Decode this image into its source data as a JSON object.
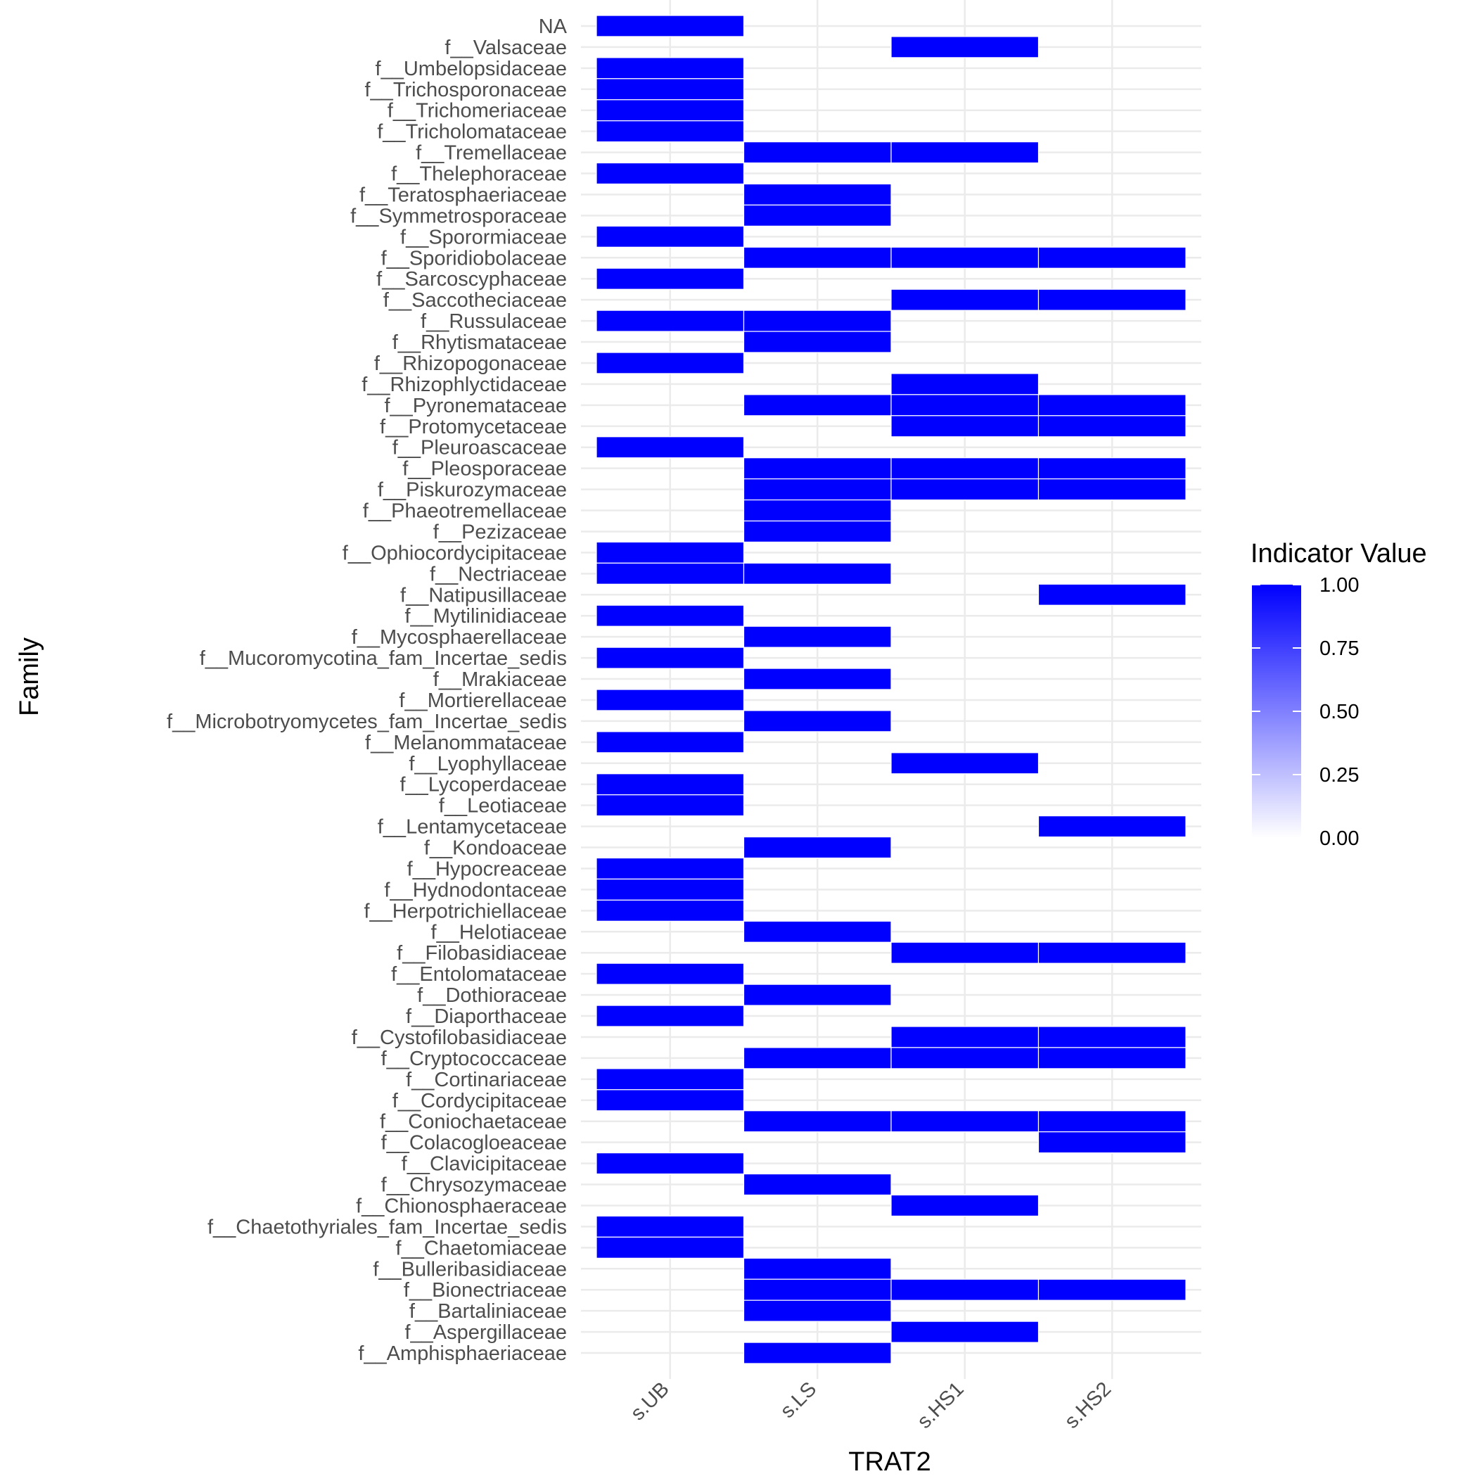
{
  "chart_data": {
    "type": "heatmap",
    "xlabel": "TRAT2",
    "ylabel": "Family",
    "x_categories": [
      "s.UB",
      "s.LS",
      "s.HS1",
      "s.HS2"
    ],
    "y_categories": [
      "NA",
      "f__Valsaceae",
      "f__Umbelopsidaceae",
      "f__Trichosporonaceae",
      "f__Trichomeriaceae",
      "f__Tricholomataceae",
      "f__Tremellaceae",
      "f__Thelephoraceae",
      "f__Teratosphaeriaceae",
      "f__Symmetrosporaceae",
      "f__Sporormiaceae",
      "f__Sporidiobolaceae",
      "f__Sarcoscyphaceae",
      "f__Saccotheciaceae",
      "f__Russulaceae",
      "f__Rhytismataceae",
      "f__Rhizopogonaceae",
      "f__Rhizophlyctidaceae",
      "f__Pyronemataceae",
      "f__Protomycetaceae",
      "f__Pleuroascaceae",
      "f__Pleosporaceae",
      "f__Piskurozymaceae",
      "f__Phaeotremellaceae",
      "f__Pezizaceae",
      "f__Ophiocordycipitaceae",
      "f__Nectriaceae",
      "f__Natipusillaceae",
      "f__Mytilinidiaceae",
      "f__Mycosphaerellaceae",
      "f__Mucoromycotina_fam_Incertae_sedis",
      "f__Mrakiaceae",
      "f__Mortierellaceae",
      "f__Microbotryomycetes_fam_Incertae_sedis",
      "f__Melanommataceae",
      "f__Lyophyllaceae",
      "f__Lycoperdaceae",
      "f__Leotiaceae",
      "f__Lentamycetaceae",
      "f__Kondoaceae",
      "f__Hypocreaceae",
      "f__Hydnodontaceae",
      "f__Herpotrichiellaceae",
      "f__Helotiaceae",
      "f__Filobasidiaceae",
      "f__Entolomataceae",
      "f__Dothioraceae",
      "f__Diaporthaceae",
      "f__Cystofilobasidiaceae",
      "f__Cryptococcaceae",
      "f__Cortinariaceae",
      "f__Cordycipitaceae",
      "f__Coniochaetaceae",
      "f__Colacogloeaceae",
      "f__Clavicipitaceae",
      "f__Chrysozymaceae",
      "f__Chionosphaeraceae",
      "f__Chaetothyriales_fam_Incertae_sedis",
      "f__Chaetomiaceae",
      "f__Bulleribasidiaceae",
      "f__Bionectriaceae",
      "f__Bartaliniaceae",
      "f__Aspergillaceae",
      "f__Amphisphaeriaceae"
    ],
    "cells": [
      {
        "y": "NA",
        "x": "s.UB",
        "value": 1.0
      },
      {
        "y": "f__Valsaceae",
        "x": "s.HS1",
        "value": 1.0
      },
      {
        "y": "f__Umbelopsidaceae",
        "x": "s.UB",
        "value": 1.0
      },
      {
        "y": "f__Trichosporonaceae",
        "x": "s.UB",
        "value": 1.0
      },
      {
        "y": "f__Trichomeriaceae",
        "x": "s.UB",
        "value": 1.0
      },
      {
        "y": "f__Tricholomataceae",
        "x": "s.UB",
        "value": 1.0
      },
      {
        "y": "f__Tremellaceae",
        "x": "s.LS",
        "value": 1.0
      },
      {
        "y": "f__Tremellaceae",
        "x": "s.HS1",
        "value": 1.0
      },
      {
        "y": "f__Thelephoraceae",
        "x": "s.UB",
        "value": 1.0
      },
      {
        "y": "f__Teratosphaeriaceae",
        "x": "s.LS",
        "value": 1.0
      },
      {
        "y": "f__Symmetrosporaceae",
        "x": "s.LS",
        "value": 1.0
      },
      {
        "y": "f__Sporormiaceae",
        "x": "s.UB",
        "value": 1.0
      },
      {
        "y": "f__Sporidiobolaceae",
        "x": "s.LS",
        "value": 1.0
      },
      {
        "y": "f__Sporidiobolaceae",
        "x": "s.HS1",
        "value": 1.0
      },
      {
        "y": "f__Sporidiobolaceae",
        "x": "s.HS2",
        "value": 1.0
      },
      {
        "y": "f__Sarcoscyphaceae",
        "x": "s.UB",
        "value": 1.0
      },
      {
        "y": "f__Saccotheciaceae",
        "x": "s.HS1",
        "value": 1.0
      },
      {
        "y": "f__Saccotheciaceae",
        "x": "s.HS2",
        "value": 1.0
      },
      {
        "y": "f__Russulaceae",
        "x": "s.UB",
        "value": 1.0
      },
      {
        "y": "f__Russulaceae",
        "x": "s.LS",
        "value": 1.0
      },
      {
        "y": "f__Rhytismataceae",
        "x": "s.LS",
        "value": 1.0
      },
      {
        "y": "f__Rhizopogonaceae",
        "x": "s.UB",
        "value": 1.0
      },
      {
        "y": "f__Rhizophlyctidaceae",
        "x": "s.HS1",
        "value": 1.0
      },
      {
        "y": "f__Pyronemataceae",
        "x": "s.LS",
        "value": 1.0
      },
      {
        "y": "f__Pyronemataceae",
        "x": "s.HS1",
        "value": 1.0
      },
      {
        "y": "f__Pyronemataceae",
        "x": "s.HS2",
        "value": 1.0
      },
      {
        "y": "f__Protomycetaceae",
        "x": "s.HS1",
        "value": 1.0
      },
      {
        "y": "f__Protomycetaceae",
        "x": "s.HS2",
        "value": 1.0
      },
      {
        "y": "f__Pleuroascaceae",
        "x": "s.UB",
        "value": 1.0
      },
      {
        "y": "f__Pleosporaceae",
        "x": "s.LS",
        "value": 1.0
      },
      {
        "y": "f__Pleosporaceae",
        "x": "s.HS1",
        "value": 1.0
      },
      {
        "y": "f__Pleosporaceae",
        "x": "s.HS2",
        "value": 1.0
      },
      {
        "y": "f__Piskurozymaceae",
        "x": "s.LS",
        "value": 1.0
      },
      {
        "y": "f__Piskurozymaceae",
        "x": "s.HS1",
        "value": 1.0
      },
      {
        "y": "f__Piskurozymaceae",
        "x": "s.HS2",
        "value": 1.0
      },
      {
        "y": "f__Phaeotremellaceae",
        "x": "s.LS",
        "value": 1.0
      },
      {
        "y": "f__Pezizaceae",
        "x": "s.LS",
        "value": 1.0
      },
      {
        "y": "f__Ophiocordycipitaceae",
        "x": "s.UB",
        "value": 1.0
      },
      {
        "y": "f__Nectriaceae",
        "x": "s.UB",
        "value": 1.0
      },
      {
        "y": "f__Nectriaceae",
        "x": "s.LS",
        "value": 1.0
      },
      {
        "y": "f__Natipusillaceae",
        "x": "s.HS2",
        "value": 1.0
      },
      {
        "y": "f__Mytilinidiaceae",
        "x": "s.UB",
        "value": 1.0
      },
      {
        "y": "f__Mycosphaerellaceae",
        "x": "s.LS",
        "value": 1.0
      },
      {
        "y": "f__Mucoromycotina_fam_Incertae_sedis",
        "x": "s.UB",
        "value": 1.0
      },
      {
        "y": "f__Mrakiaceae",
        "x": "s.LS",
        "value": 1.0
      },
      {
        "y": "f__Mortierellaceae",
        "x": "s.UB",
        "value": 1.0
      },
      {
        "y": "f__Microbotryomycetes_fam_Incertae_sedis",
        "x": "s.LS",
        "value": 1.0
      },
      {
        "y": "f__Melanommataceae",
        "x": "s.UB",
        "value": 1.0
      },
      {
        "y": "f__Lyophyllaceae",
        "x": "s.HS1",
        "value": 1.0
      },
      {
        "y": "f__Lycoperdaceae",
        "x": "s.UB",
        "value": 1.0
      },
      {
        "y": "f__Leotiaceae",
        "x": "s.UB",
        "value": 1.0
      },
      {
        "y": "f__Lentamycetaceae",
        "x": "s.HS2",
        "value": 1.0
      },
      {
        "y": "f__Kondoaceae",
        "x": "s.LS",
        "value": 1.0
      },
      {
        "y": "f__Hypocreaceae",
        "x": "s.UB",
        "value": 1.0
      },
      {
        "y": "f__Hydnodontaceae",
        "x": "s.UB",
        "value": 1.0
      },
      {
        "y": "f__Herpotrichiellaceae",
        "x": "s.UB",
        "value": 1.0
      },
      {
        "y": "f__Helotiaceae",
        "x": "s.LS",
        "value": 1.0
      },
      {
        "y": "f__Filobasidiaceae",
        "x": "s.HS1",
        "value": 1.0
      },
      {
        "y": "f__Filobasidiaceae",
        "x": "s.HS2",
        "value": 1.0
      },
      {
        "y": "f__Entolomataceae",
        "x": "s.UB",
        "value": 1.0
      },
      {
        "y": "f__Dothioraceae",
        "x": "s.LS",
        "value": 1.0
      },
      {
        "y": "f__Diaporthaceae",
        "x": "s.UB",
        "value": 1.0
      },
      {
        "y": "f__Cystofilobasidiaceae",
        "x": "s.HS1",
        "value": 1.0
      },
      {
        "y": "f__Cystofilobasidiaceae",
        "x": "s.HS2",
        "value": 1.0
      },
      {
        "y": "f__Cryptococcaceae",
        "x": "s.LS",
        "value": 1.0
      },
      {
        "y": "f__Cryptococcaceae",
        "x": "s.HS1",
        "value": 1.0
      },
      {
        "y": "f__Cryptococcaceae",
        "x": "s.HS2",
        "value": 1.0
      },
      {
        "y": "f__Cortinariaceae",
        "x": "s.UB",
        "value": 1.0
      },
      {
        "y": "f__Cordycipitaceae",
        "x": "s.UB",
        "value": 1.0
      },
      {
        "y": "f__Coniochaetaceae",
        "x": "s.LS",
        "value": 1.0
      },
      {
        "y": "f__Coniochaetaceae",
        "x": "s.HS1",
        "value": 1.0
      },
      {
        "y": "f__Coniochaetaceae",
        "x": "s.HS2",
        "value": 1.0
      },
      {
        "y": "f__Colacogloeaceae",
        "x": "s.HS2",
        "value": 1.0
      },
      {
        "y": "f__Clavicipitaceae",
        "x": "s.UB",
        "value": 1.0
      },
      {
        "y": "f__Chrysozymaceae",
        "x": "s.LS",
        "value": 1.0
      },
      {
        "y": "f__Chionosphaeraceae",
        "x": "s.HS1",
        "value": 1.0
      },
      {
        "y": "f__Chaetothyriales_fam_Incertae_sedis",
        "x": "s.UB",
        "value": 1.0
      },
      {
        "y": "f__Chaetomiaceae",
        "x": "s.UB",
        "value": 1.0
      },
      {
        "y": "f__Bulleribasidiaceae",
        "x": "s.LS",
        "value": 1.0
      },
      {
        "y": "f__Bionectriaceae",
        "x": "s.LS",
        "value": 1.0
      },
      {
        "y": "f__Bionectriaceae",
        "x": "s.HS1",
        "value": 1.0
      },
      {
        "y": "f__Bionectriaceae",
        "x": "s.HS2",
        "value": 1.0
      },
      {
        "y": "f__Bartaliniaceae",
        "x": "s.LS",
        "value": 1.0
      },
      {
        "y": "f__Aspergillaceae",
        "x": "s.HS1",
        "value": 1.0
      },
      {
        "y": "f__Amphisphaeriaceae",
        "x": "s.LS",
        "value": 1.0
      }
    ],
    "legend": {
      "title": "Indicator Value",
      "range": [
        0,
        1
      ],
      "ticks": [
        "0.00",
        "0.25",
        "0.50",
        "0.75",
        "1.00"
      ],
      "tick_values": [
        0,
        0.25,
        0.5,
        0.75,
        1.0
      ],
      "low_color": "#ffffff",
      "high_color": "#0000ff",
      "placement": "right"
    },
    "grid": true,
    "colors": {
      "tile": "#0000ff",
      "tile_border": "#ffffff",
      "grid": "#ebebeb",
      "tick_text": "#4d4d4d"
    }
  }
}
